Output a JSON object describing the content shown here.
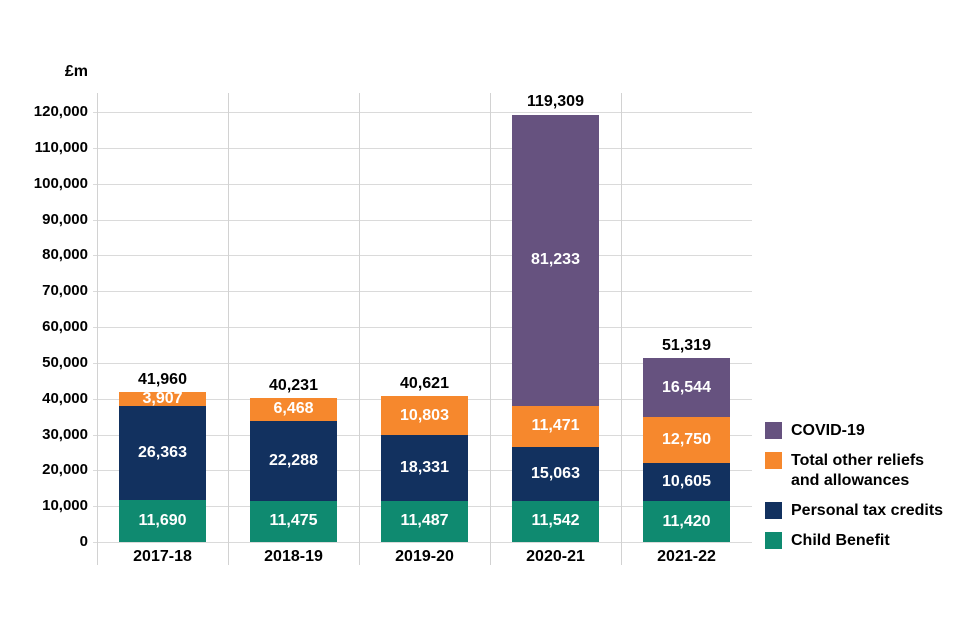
{
  "chart_data": {
    "type": "bar",
    "stacked": true,
    "unit_label": "£m",
    "categories": [
      "2017-18",
      "2018-19",
      "2019-20",
      "2020-21",
      "2021-22"
    ],
    "series": [
      {
        "name": "Child Benefit",
        "color": "#0f8a70",
        "values": [
          11690,
          11475,
          11487,
          11542,
          11420
        ],
        "labels": [
          "11,690",
          "11,475",
          "11,487",
          "11,542",
          "11,420"
        ]
      },
      {
        "name": "Personal tax credits",
        "color": "#12315f",
        "values": [
          26363,
          22288,
          18331,
          15063,
          10605
        ],
        "labels": [
          "26,363",
          "22,288",
          "18,331",
          "15,063",
          "10,605"
        ]
      },
      {
        "name": "Total other reliefs and allowances",
        "color": "#f6882d",
        "values": [
          3907,
          6468,
          10803,
          11471,
          12750
        ],
        "labels": [
          "3,907",
          "6,468",
          "10,803",
          "11,471",
          "12,750"
        ]
      },
      {
        "name": "COVID-19",
        "color": "#66527f",
        "values": [
          0,
          0,
          0,
          81233,
          16544
        ],
        "labels": [
          "",
          "",
          "",
          "81,233",
          "16,544"
        ]
      }
    ],
    "totals": {
      "values": [
        41960,
        40231,
        40621,
        119309,
        51319
      ],
      "labels": [
        "41,960",
        "40,231",
        "40,621",
        "119,309",
        "51,319"
      ]
    },
    "ylim": [
      0,
      120000
    ],
    "ytick_step": 10000,
    "ytick_labels": [
      "0",
      "10,000",
      "20,000",
      "30,000",
      "40,000",
      "50,000",
      "60,000",
      "70,000",
      "80,000",
      "90,000",
      "100,000",
      "110,000",
      "120,000"
    ],
    "grid": true,
    "legend_position": "right"
  },
  "legend": {
    "items": [
      {
        "name": "COVID-19",
        "color": "#66527f",
        "lines": [
          "COVID-19"
        ]
      },
      {
        "name": "Total other reliefs and allowances",
        "color": "#f6882d",
        "lines": [
          "Total other reliefs",
          "and allowances"
        ]
      },
      {
        "name": "Personal tax credits",
        "color": "#12315f",
        "lines": [
          "Personal tax credits"
        ]
      },
      {
        "name": "Child Benefit",
        "color": "#0f8a70",
        "lines": [
          "Child Benefit"
        ]
      }
    ]
  },
  "colors": {
    "background": "#ffffff",
    "gridline": "#dadada",
    "separator": "#d2d2d2",
    "text": "#000000",
    "segment_label": "#ffffff"
  }
}
